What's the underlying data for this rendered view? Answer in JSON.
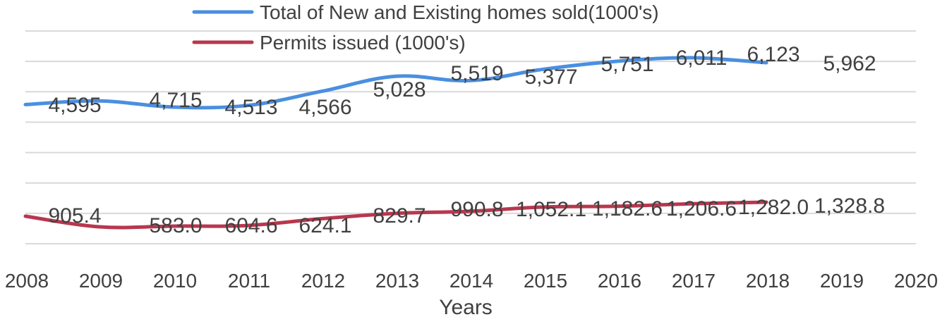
{
  "chart_data": {
    "type": "line",
    "title": "",
    "xlabel": "Years",
    "ylabel": "",
    "x_categories": [
      "2008",
      "2009",
      "2010",
      "2011",
      "2012",
      "2013",
      "2014",
      "2015",
      "2016",
      "2017",
      "2018",
      "2019",
      "2020"
    ],
    "series": [
      {
        "name": "Total of New and Existing homes sold(1000's)",
        "color": "#4A8FE0",
        "x": [
          "2008",
          "2009",
          "2010",
          "2011",
          "2012",
          "2013",
          "2014",
          "2015",
          "2016",
          "2017",
          "2018"
        ],
        "values": [
          4595,
          4715,
          4513,
          4566,
          5028,
          5519,
          5377,
          5751,
          6011,
          6123,
          5962
        ],
        "labels": [
          "4,595",
          "4,715",
          "4,513",
          "4,566",
          "5,028",
          "5,519",
          "5,377",
          "5,751",
          "6,011",
          "6,123",
          "5,962"
        ]
      },
      {
        "name": "Permits issued (1000's)",
        "color": "#B8374E",
        "x": [
          "2008",
          "2009",
          "2010",
          "2011",
          "2012",
          "2013",
          "2014",
          "2015",
          "2016",
          "2017",
          "2018"
        ],
        "values": [
          905.4,
          583.0,
          604.6,
          624.1,
          829.7,
          990.8,
          1052.1,
          1182.6,
          1206.6,
          1282.0,
          1328.8
        ],
        "labels": [
          "905.4",
          "583.0",
          "604.6",
          "624.1",
          "829.7",
          "990.8",
          "1,052.1",
          "1,182.6",
          "1,206.6",
          "1,282.0",
          "1,328.8"
        ]
      }
    ],
    "legend_position": "top",
    "grid": true,
    "gridline_count": 8
  }
}
